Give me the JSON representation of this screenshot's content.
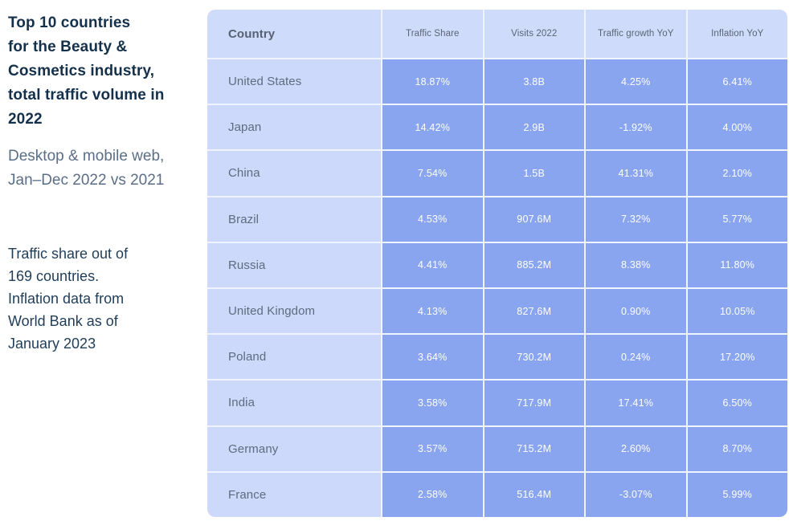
{
  "sidebar": {
    "title_lines": [
      "Top 10 countries",
      "for the Beauty &",
      "Cosmetics industry,",
      "total traffic volume in",
      "2022"
    ],
    "subtitle_lines": [
      "Desktop & mobile web,",
      "Jan–Dec 2022 vs 2021"
    ],
    "note_lines": [
      "Traffic share out of",
      "169 countries.",
      "Inflation data from",
      "World Bank as of",
      "January 2023"
    ]
  },
  "table": {
    "columns": [
      "Country",
      "Traffic Share",
      "Visits 2022",
      "Traffic growth YoY",
      "Inflation YoY"
    ],
    "rows": [
      {
        "country": "United States",
        "traffic_share": "18.87%",
        "visits": "3.8B",
        "growth": "4.25%",
        "inflation": "6.41%"
      },
      {
        "country": "Japan",
        "traffic_share": "14.42%",
        "visits": "2.9B",
        "growth": "-1.92%",
        "inflation": "4.00%"
      },
      {
        "country": "China",
        "traffic_share": "7.54%",
        "visits": "1.5B",
        "growth": "41.31%",
        "inflation": "2.10%"
      },
      {
        "country": "Brazil",
        "traffic_share": "4.53%",
        "visits": "907.6M",
        "growth": "7.32%",
        "inflation": "5.77%"
      },
      {
        "country": "Russia",
        "traffic_share": "4.41%",
        "visits": "885.2M",
        "growth": "8.38%",
        "inflation": "11.80%"
      },
      {
        "country": "United Kingdom",
        "traffic_share": "4.13%",
        "visits": "827.6M",
        "growth": "0.90%",
        "inflation": "10.05%"
      },
      {
        "country": "Poland",
        "traffic_share": "3.64%",
        "visits": "730.2M",
        "growth": "0.24%",
        "inflation": "17.20%"
      },
      {
        "country": "India",
        "traffic_share": "3.58%",
        "visits": "717.9M",
        "growth": "17.41%",
        "inflation": "6.50%"
      },
      {
        "country": "Germany",
        "traffic_share": "3.57%",
        "visits": "715.2M",
        "growth": "2.60%",
        "inflation": "8.70%"
      },
      {
        "country": "France",
        "traffic_share": "2.58%",
        "visits": "516.4M",
        "growth": "-3.07%",
        "inflation": "5.99%"
      }
    ]
  },
  "colors": {
    "header_bg": "#cfdbfb",
    "country_cell_bg": "#ccd9fa",
    "data_cell_bg": "#89a5f0",
    "data_cell_text": "#ffffff",
    "title_text": "#14304b",
    "subtitle_text": "#5a6e87",
    "note_text": "#1f3d58",
    "row_label_text": "#5e6c7f"
  },
  "chart_data": {
    "type": "table",
    "title": "Top 10 countries for the Beauty & Cosmetics industry, total traffic volume in 2022",
    "subtitle": "Desktop & mobile web, Jan–Dec 2022 vs 2021",
    "footnote": "Traffic share out of 169 countries. Inflation data from World Bank as of January 2023",
    "columns": [
      "Country",
      "Traffic Share",
      "Visits 2022",
      "Traffic growth YoY",
      "Inflation YoY"
    ],
    "rows": [
      [
        "United States",
        "18.87%",
        "3.8B",
        "4.25%",
        "6.41%"
      ],
      [
        "Japan",
        "14.42%",
        "2.9B",
        "-1.92%",
        "4.00%"
      ],
      [
        "China",
        "7.54%",
        "1.5B",
        "41.31%",
        "2.10%"
      ],
      [
        "Brazil",
        "4.53%",
        "907.6M",
        "7.32%",
        "5.77%"
      ],
      [
        "Russia",
        "4.41%",
        "885.2M",
        "8.38%",
        "11.80%"
      ],
      [
        "United Kingdom",
        "4.13%",
        "827.6M",
        "0.90%",
        "10.05%"
      ],
      [
        "Poland",
        "3.64%",
        "730.2M",
        "0.24%",
        "17.20%"
      ],
      [
        "India",
        "3.58%",
        "717.9M",
        "17.41%",
        "6.50%"
      ],
      [
        "Germany",
        "3.57%",
        "715.2M",
        "2.60%",
        "8.70%"
      ],
      [
        "France",
        "2.58%",
        "516.4M",
        "-3.07%",
        "5.99%"
      ]
    ]
  }
}
